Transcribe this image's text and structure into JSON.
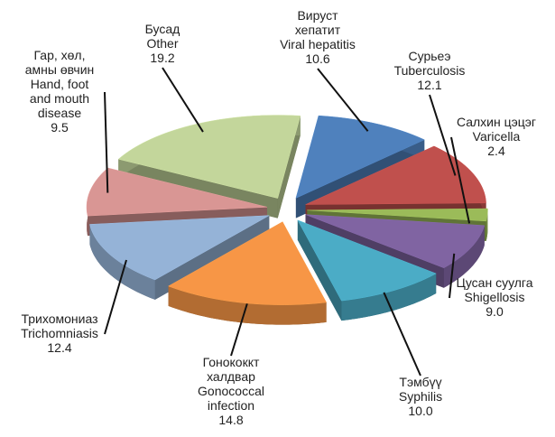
{
  "chart_data": {
    "type": "pie",
    "categories": [
      [
        "Вируст",
        "хепатит",
        "Viral hepatitis"
      ],
      [
        "Сурьеэ",
        "Tuberculosis"
      ],
      [
        "Салхин цэцэг",
        "Varicella"
      ],
      [
        "Цусан суулга",
        "Shigellosis"
      ],
      [
        "Тэмбүү",
        "Syphilis"
      ],
      [
        "Гонококкт",
        "халдвар",
        "Gonococcal",
        "infection"
      ],
      [
        "Трихомониаз",
        "Trichomniasis"
      ],
      [
        "Гар, хөл,",
        "амны өвчин",
        "Hand, foot",
        "and mouth",
        "disease"
      ],
      [
        "Бусад",
        "Other"
      ]
    ],
    "values": [
      10.6,
      12.1,
      2.4,
      9.0,
      10.0,
      14.8,
      12.4,
      9.5,
      19.2
    ],
    "value_labels": [
      "10.6",
      "12.1",
      "2.4",
      "9.0",
      "10.0",
      "14.8",
      "12.4",
      "9.5",
      "19.2"
    ],
    "colors": [
      "#4f81bd",
      "#c0504d",
      "#9bbb59",
      "#8064a2",
      "#4bacc6",
      "#f79646",
      "#95b3d7",
      "#d99694",
      "#c3d69b"
    ]
  }
}
